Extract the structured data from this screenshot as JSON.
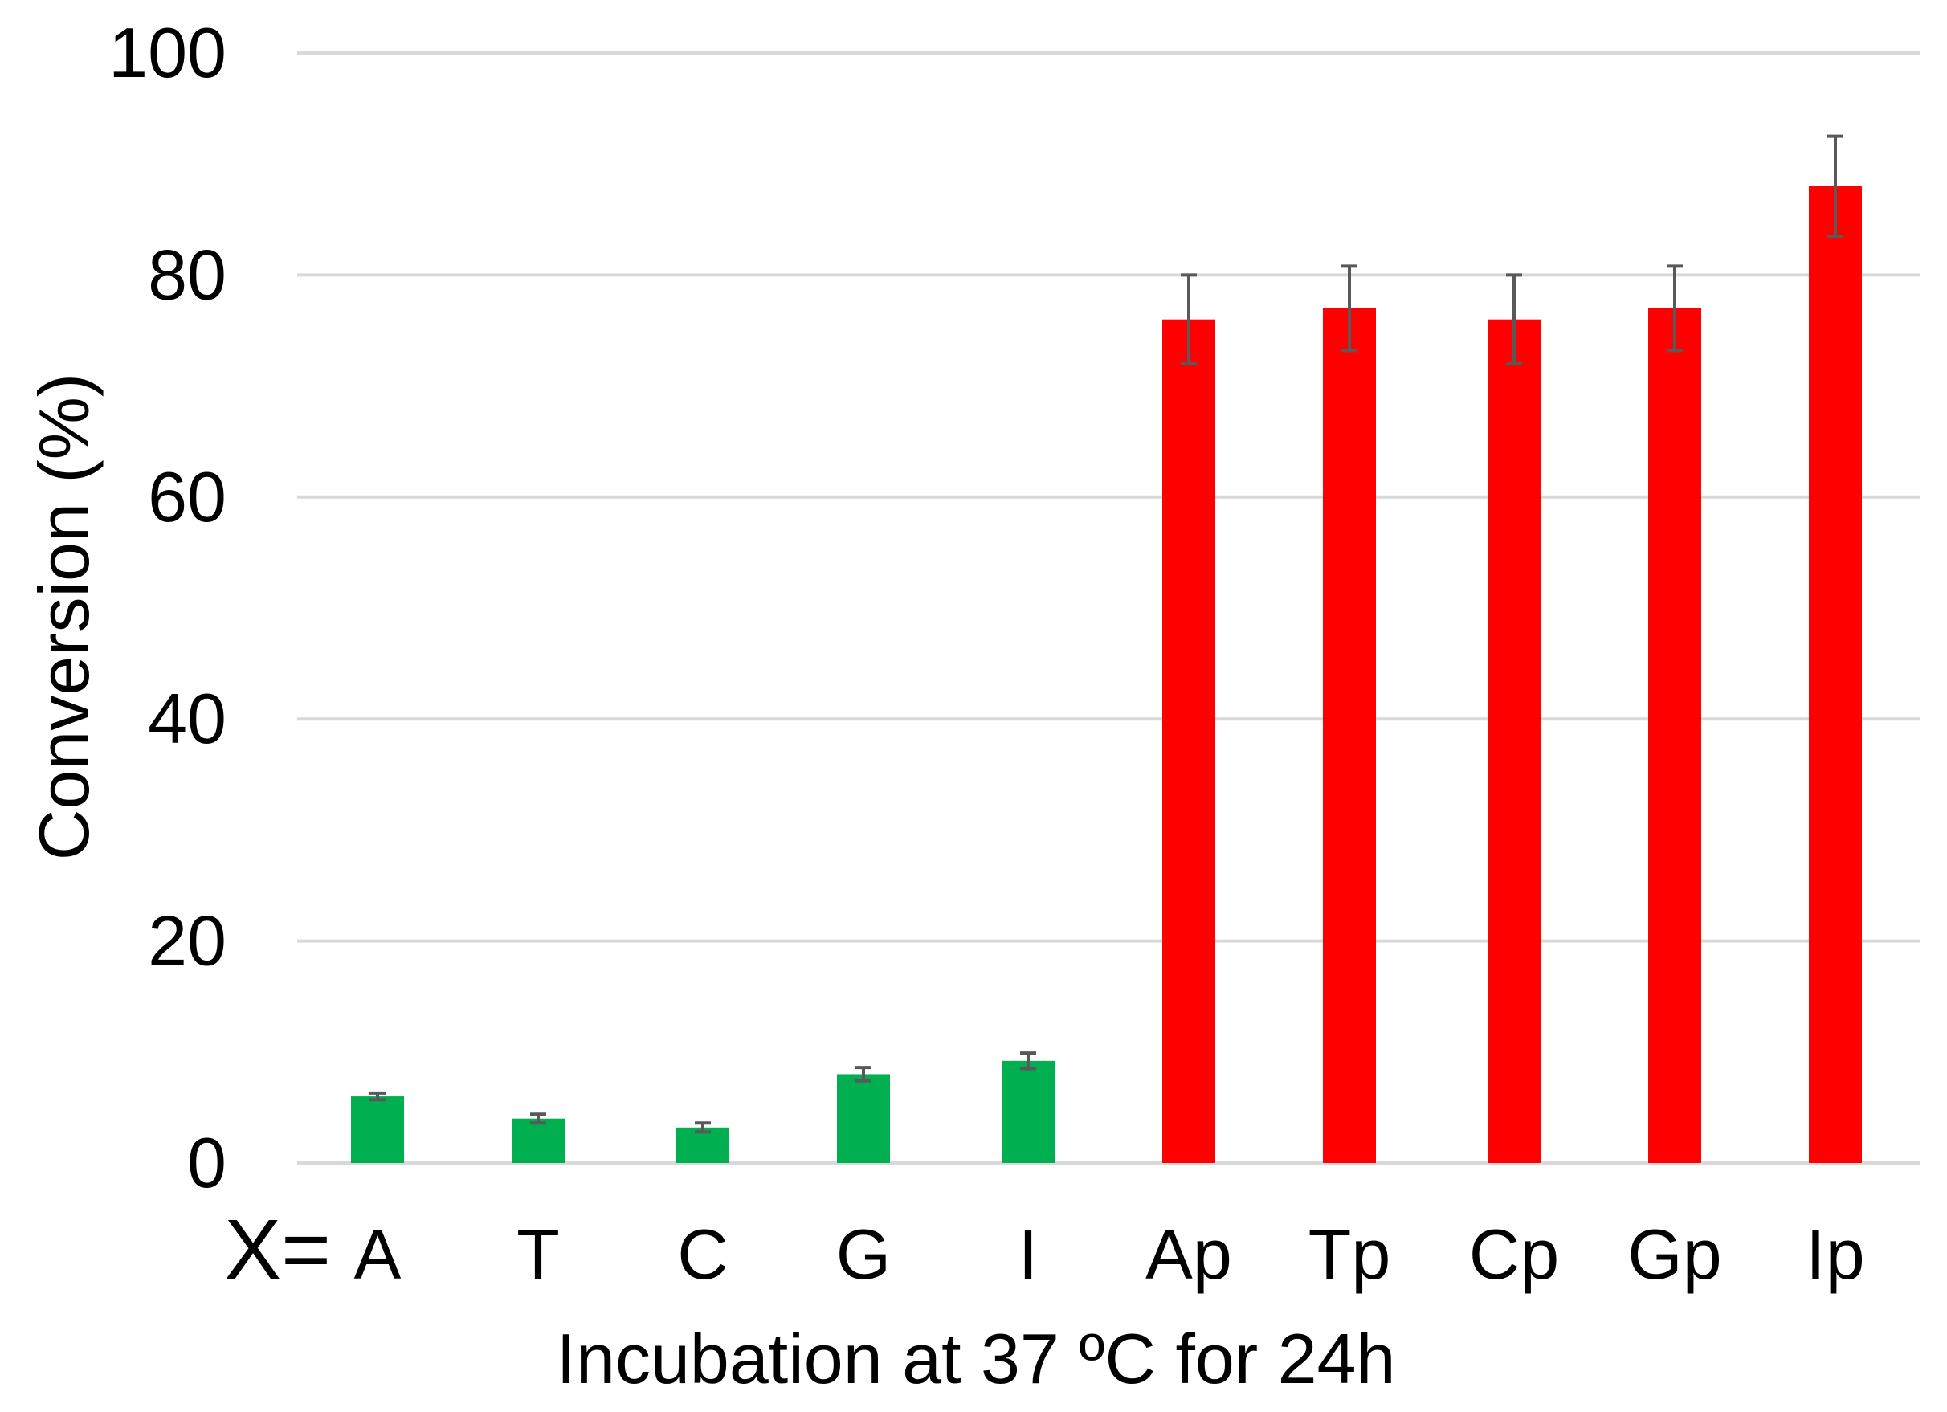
{
  "chart_data": {
    "type": "bar",
    "title": "",
    "x_prefix": "X=",
    "xlabel": "Incubation at 37 ºC for 24h",
    "ylabel": "Conversion (%)",
    "ylim": [
      0,
      100
    ],
    "yticks": [
      0,
      20,
      40,
      60,
      80,
      100
    ],
    "grid": true,
    "categories": [
      "A",
      "T",
      "C",
      "G",
      "I",
      "Ap",
      "Tp",
      "Cp",
      "Gp",
      "Ip"
    ],
    "values": [
      6,
      4,
      3.2,
      8,
      9.2,
      76,
      77,
      76,
      77,
      88
    ],
    "errors": [
      0.3,
      0.4,
      0.4,
      0.6,
      0.7,
      4,
      3.8,
      4,
      3.8,
      4.5
    ],
    "bar_colors": [
      "#00b050",
      "#00b050",
      "#00b050",
      "#00b050",
      "#00b050",
      "#ff0000",
      "#ff0000",
      "#ff0000",
      "#ff0000",
      "#ff0000"
    ],
    "gridline_color": "#d9d9d9",
    "errorbar_color": "#595959"
  }
}
